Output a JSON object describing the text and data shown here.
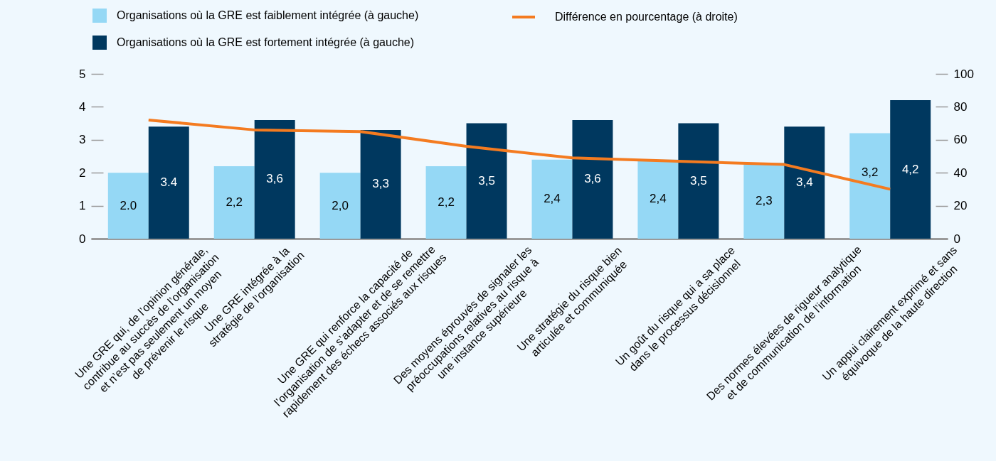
{
  "chart_data": {
    "type": "bar",
    "categories": [
      "Une GRE qui, de l’opinion générale,\ncontribue au succès de l’organisation\net n’est pas seulement un moyen\nde prévenir le risque",
      "Une GRE intégrée à la\nstratégie de l’organisation",
      "Une GRE qui renforce la capacité de\nl’organisation de s’adapter et de se remettre\nrapidement des échecs associés aux risques",
      "Des moyens éprouvés de signaler les\npréoccupations relatives au risque à\nune instance supérieure",
      "Une stratégie du risque bien\narticulée et communiquée",
      "Un goût du risque qui a sa place\ndans le processus décisionnel",
      "Des normes élevées de rigueur analytique\net de communication de l’information",
      "Un appui clairement exprimé et sans\néquivoque de la haute direction"
    ],
    "series": [
      {
        "name": "Organisations où la GRE est faiblement intégrée (à gauche)",
        "color": "#95d8f5",
        "values": [
          2.0,
          2.2,
          2.0,
          2.2,
          2.4,
          2.4,
          2.3,
          3.2
        ],
        "value_labels": [
          "2.0",
          "2,2",
          "2,0",
          "2,2",
          "2,4",
          "2,4",
          "2,3",
          "3,2"
        ]
      },
      {
        "name": "Organisations où la GRE est fortement intégrée (à gauche)",
        "color": "#00385f",
        "values": [
          3.4,
          3.6,
          3.3,
          3.5,
          3.6,
          3.5,
          3.4,
          4.2
        ],
        "value_labels": [
          "3.4",
          "3,6",
          "3,3",
          "3,5",
          "3,6",
          "3,5",
          "3,4",
          "4,2"
        ]
      },
      {
        "name": "Différence en pourcentage (à droite)",
        "type": "line",
        "axis": "y2",
        "color": "#f47b20",
        "values": [
          72,
          66,
          65,
          56,
          49,
          47,
          45,
          30
        ]
      }
    ],
    "ylim": [
      0,
      5
    ],
    "yticks": [
      0,
      1,
      2,
      3,
      4,
      5
    ],
    "y2lim": [
      0,
      100
    ],
    "y2ticks": [
      0,
      20,
      40,
      60,
      80,
      100
    ],
    "grid": false,
    "legend": "top",
    "marker": "none",
    "line_style": "solid"
  }
}
